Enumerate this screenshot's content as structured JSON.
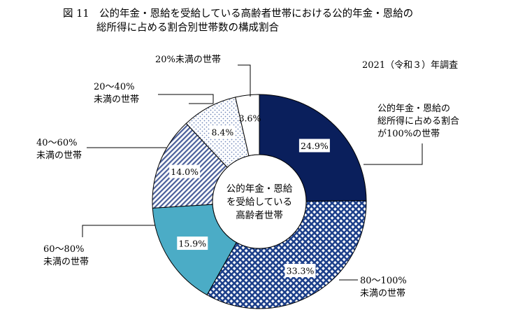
{
  "chart_data": {
    "type": "pie",
    "title_lines": [
      "図 11　公的年金・恩給を受給している高齢者世帯における公的年金・恩給の",
      "総所得に占める割合別世帯数の構成割合"
    ],
    "survey_note": "2021（令和３）年調査",
    "center_label_lines": [
      "公的年金・恩給",
      "を受給している",
      "高齢者世帯"
    ],
    "slices": [
      {
        "label_lines": [
          "公的年金・恩給の",
          "総所得に占める割合",
          "が100%の世帯"
        ],
        "value": 24.9,
        "value_label": "24.9%",
        "color": "#0a1f5c",
        "pattern": "solid"
      },
      {
        "label_lines": [
          "80～100%",
          "未満の世帯"
        ],
        "value": 33.3,
        "value_label": "33.3%",
        "color": "#1c3f8a",
        "pattern": "check"
      },
      {
        "label_lines": [
          "60～80%",
          "未満の世帯"
        ],
        "value": 15.9,
        "value_label": "15.9%",
        "color": "#4bacc6",
        "pattern": "solid"
      },
      {
        "label_lines": [
          "40～60%",
          "未満の世帯"
        ],
        "value": 14.0,
        "value_label": "14.0%",
        "color": "#4a5f9a",
        "pattern": "diagonal"
      },
      {
        "label_lines": [
          "20～40%",
          "未満の世帯"
        ],
        "value": 8.4,
        "value_label": "8.4%",
        "color": "#6f86b8",
        "pattern": "dots"
      },
      {
        "label_lines": [
          "20%未満の世帯"
        ],
        "value": 3.6,
        "value_label": "3.6%",
        "color": "#ffffff",
        "pattern": "none"
      }
    ]
  }
}
